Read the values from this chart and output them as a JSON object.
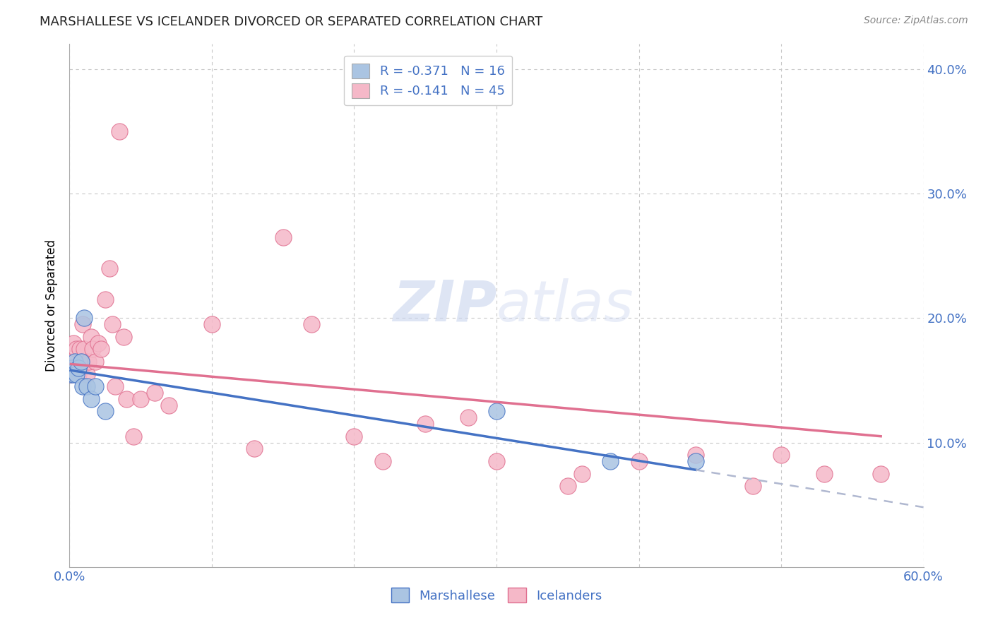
{
  "title": "MARSHALLESE VS ICELANDER DIVORCED OR SEPARATED CORRELATION CHART",
  "source": "Source: ZipAtlas.com",
  "ylabel": "Divorced or Separated",
  "watermark": "ZIPatlas",
  "xlim": [
    0.0,
    0.6
  ],
  "ylim": [
    0.0,
    0.42
  ],
  "xticks": [
    0.0,
    0.1,
    0.2,
    0.3,
    0.4,
    0.5,
    0.6
  ],
  "yticks": [
    0.0,
    0.1,
    0.2,
    0.3,
    0.4
  ],
  "ytick_right_labels": [
    "",
    "10.0%",
    "20.0%",
    "30.0%",
    "40.0%"
  ],
  "xtick_labels": [
    "0.0%",
    "",
    "",
    "",
    "",
    "",
    "60.0%"
  ],
  "blue_R": -0.371,
  "blue_N": 16,
  "pink_R": -0.141,
  "pink_N": 45,
  "blue_color": "#aac4e2",
  "pink_color": "#f5b8c8",
  "blue_line_color": "#4472C4",
  "pink_line_color": "#E07090",
  "dashed_line_color": "#b0b8d0",
  "tick_color": "#4472C4",
  "grid_color": "#c8c8c8",
  "blue_points_x": [
    0.001,
    0.002,
    0.003,
    0.004,
    0.005,
    0.006,
    0.008,
    0.009,
    0.01,
    0.012,
    0.015,
    0.018,
    0.025,
    0.3,
    0.38,
    0.44
  ],
  "blue_points_y": [
    0.155,
    0.16,
    0.155,
    0.165,
    0.155,
    0.16,
    0.165,
    0.145,
    0.2,
    0.145,
    0.135,
    0.145,
    0.125,
    0.125,
    0.085,
    0.085
  ],
  "pink_points_x": [
    0.001,
    0.002,
    0.003,
    0.004,
    0.005,
    0.006,
    0.007,
    0.008,
    0.009,
    0.01,
    0.012,
    0.013,
    0.015,
    0.016,
    0.018,
    0.02,
    0.022,
    0.025,
    0.028,
    0.03,
    0.032,
    0.035,
    0.038,
    0.04,
    0.045,
    0.05,
    0.06,
    0.07,
    0.1,
    0.13,
    0.15,
    0.17,
    0.2,
    0.22,
    0.25,
    0.28,
    0.3,
    0.35,
    0.36,
    0.4,
    0.44,
    0.48,
    0.5,
    0.53,
    0.57
  ],
  "pink_points_y": [
    0.155,
    0.165,
    0.18,
    0.16,
    0.175,
    0.155,
    0.175,
    0.165,
    0.195,
    0.175,
    0.155,
    0.165,
    0.185,
    0.175,
    0.165,
    0.18,
    0.175,
    0.215,
    0.24,
    0.195,
    0.145,
    0.35,
    0.185,
    0.135,
    0.105,
    0.135,
    0.14,
    0.13,
    0.195,
    0.095,
    0.265,
    0.195,
    0.105,
    0.085,
    0.115,
    0.12,
    0.085,
    0.065,
    0.075,
    0.085,
    0.09,
    0.065,
    0.09,
    0.075,
    0.075
  ],
  "blue_line_x_start": 0.001,
  "blue_line_x_solid_end": 0.44,
  "blue_line_x_dash_end": 0.6,
  "blue_line_y_start": 0.158,
  "blue_line_y_solid_end": 0.078,
  "blue_line_y_dash_end": 0.048,
  "pink_line_x_start": 0.001,
  "pink_line_x_end": 0.57,
  "pink_line_y_start": 0.163,
  "pink_line_y_end": 0.105
}
